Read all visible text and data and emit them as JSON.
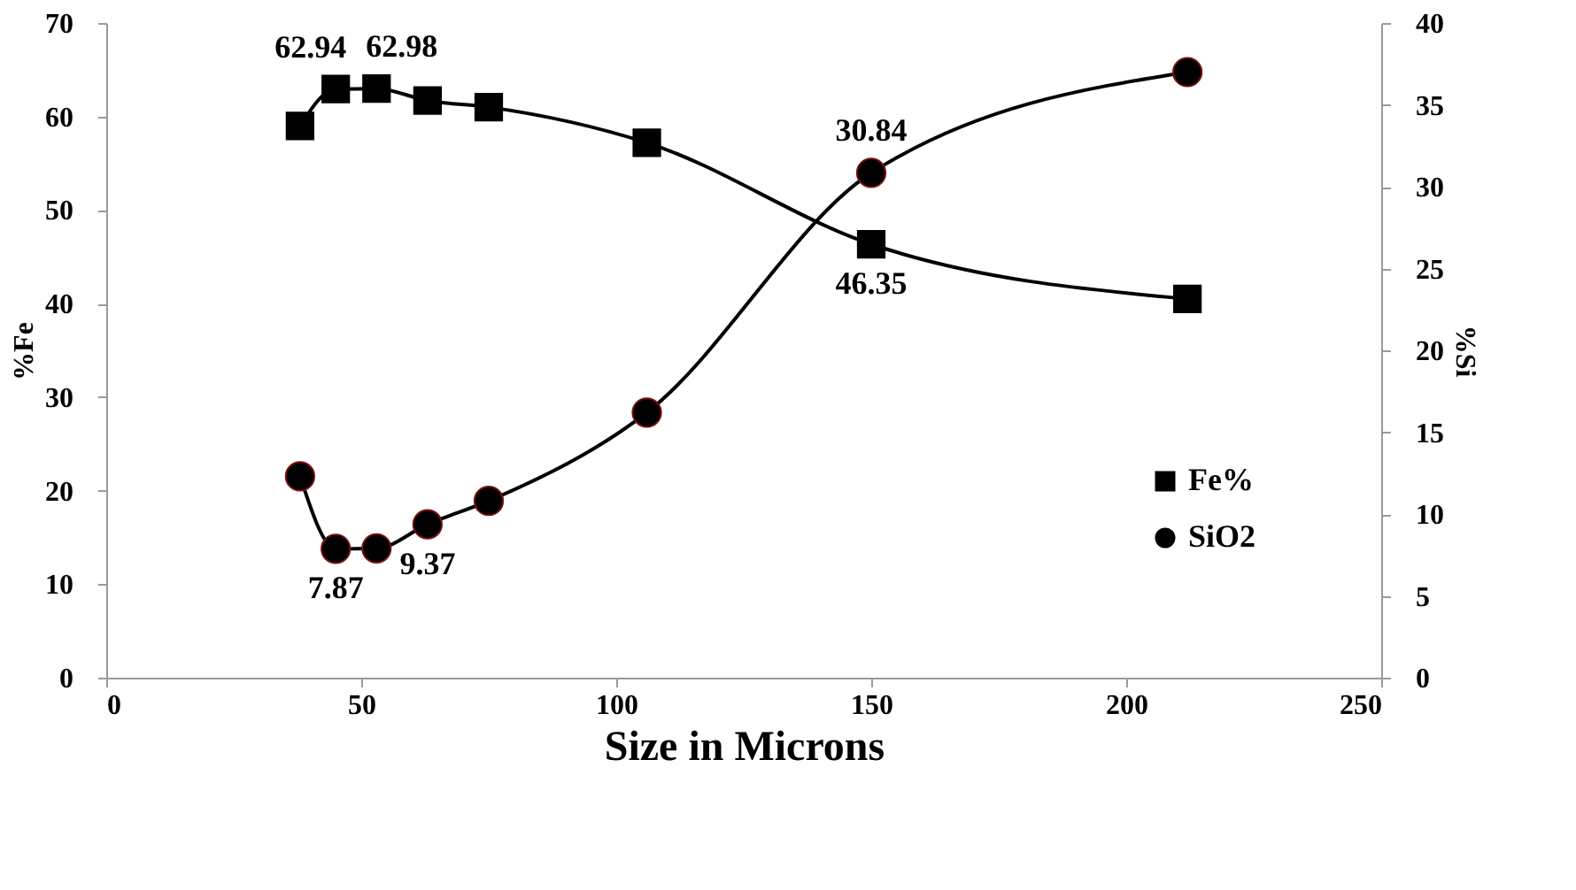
{
  "chart_data": {
    "type": "line",
    "xlabel": "Size in Microns",
    "ylabel": "%Fe",
    "y2label": "%Si",
    "x": [
      38,
      45,
      53,
      63,
      75,
      106,
      150,
      212
    ],
    "xlim": [
      0,
      250
    ],
    "xticks": [
      0,
      50,
      100,
      150,
      200,
      250
    ],
    "ylim": [
      0,
      70
    ],
    "yticks": [
      0,
      10,
      20,
      30,
      40,
      50,
      60,
      70
    ],
    "y2lim": [
      0,
      40
    ],
    "y2ticks": [
      0,
      5,
      10,
      15,
      20,
      25,
      30,
      35,
      40
    ],
    "grid": false,
    "legend": "bottom right",
    "series": [
      {
        "name": "Fe%",
        "color": "#000000",
        "marker": "square",
        "values": [
          59.0,
          62.94,
          62.98,
          61.7,
          61.0,
          57.2,
          46.35,
          40.5
        ],
        "value_labels": [
          null,
          "62.94",
          "62.98",
          null,
          null,
          null,
          "46.35",
          null
        ]
      },
      {
        "name": "SiO2",
        "color": "#000000",
        "marker": "circle",
        "axis": "y2",
        "values": [
          12.3,
          7.87,
          7.9,
          9.37,
          10.8,
          16.2,
          30.84,
          37.0
        ],
        "value_labels": [
          null,
          "7.87",
          null,
          "9.37",
          null,
          null,
          "30.84",
          null
        ]
      }
    ]
  }
}
